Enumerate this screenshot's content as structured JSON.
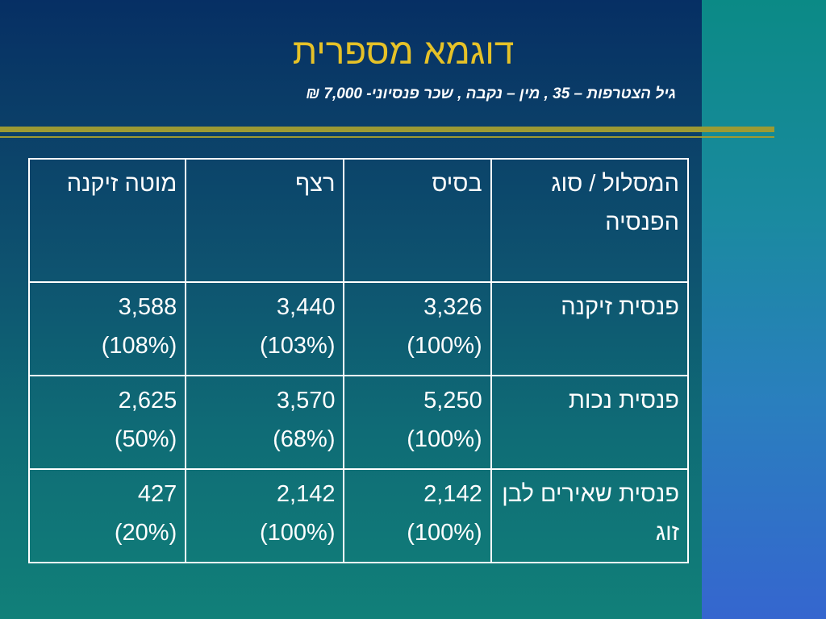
{
  "title": "דוגמא מספרית",
  "subtitle": "גיל הצטרפות – 35 , מין – נקבה , שכר פנסיוני- 7,000 ₪",
  "table": {
    "headers": {
      "label": "המסלול / סוג הפנסיה",
      "base": "בסיס",
      "continuous": "רצף",
      "shifted": "מוטה זיקנה"
    },
    "rows": [
      {
        "label": "פנסית זיקנה",
        "base_value": "3,326",
        "base_pct": "(100%)",
        "continuous_value": "3,440",
        "continuous_pct": "(103%)",
        "shifted_value": "3,588",
        "shifted_pct": "(108%)"
      },
      {
        "label": "פנסית נכות",
        "base_value": "5,250",
        "base_pct": "(100%)",
        "continuous_value": "3,570",
        "continuous_pct": "(68%)",
        "shifted_value": "2,625",
        "shifted_pct": "(50%)"
      },
      {
        "label": "פנסית שאירים לבן זוג",
        "base_value": "2,142",
        "base_pct": "(100%)",
        "continuous_value": "2,142",
        "continuous_pct": "(100%)",
        "shifted_value": "427",
        "shifted_pct": "(20%)"
      }
    ]
  },
  "colors": {
    "title": "#e6c228",
    "rule": "#9c9a33",
    "background_top": "#062f64",
    "background_bottom": "#118079",
    "right_panel_bottom": "#3566cf"
  }
}
